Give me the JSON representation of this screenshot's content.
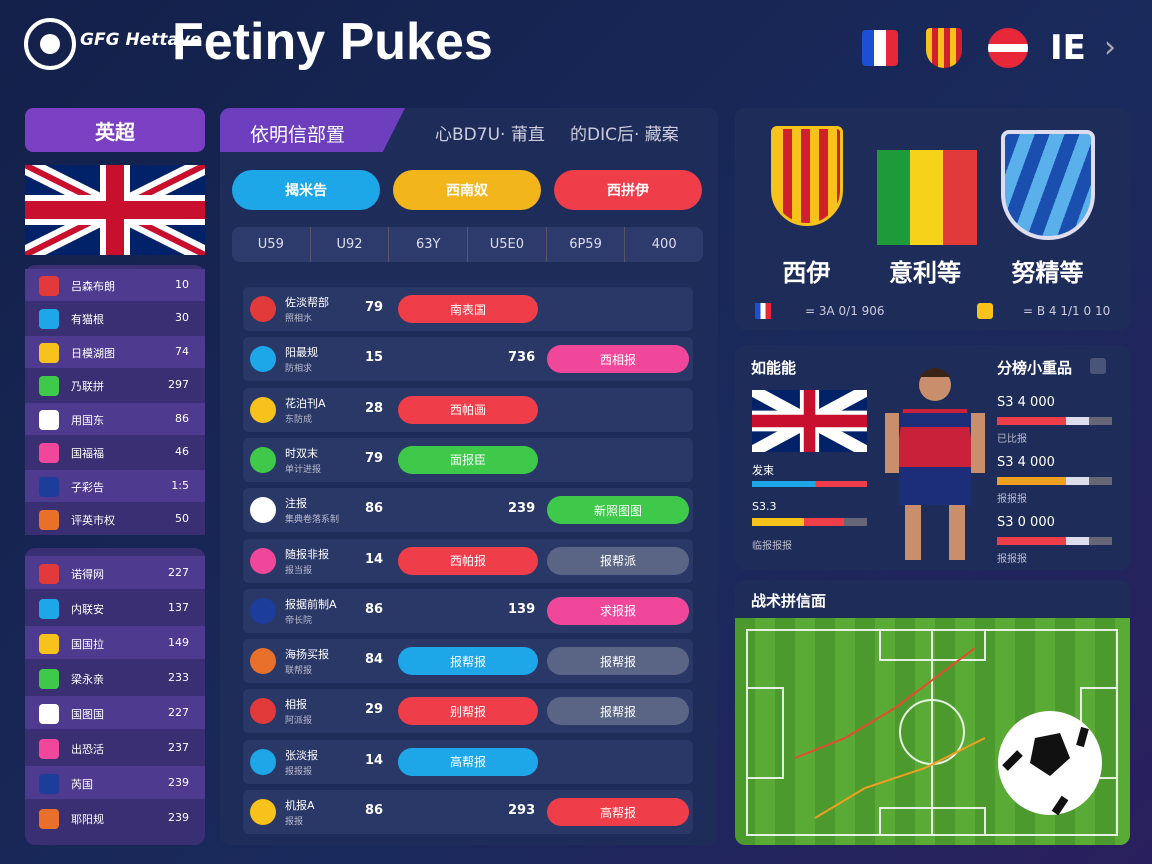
{
  "header": {
    "brand": "GFG Hettave",
    "title": "Fetiny Pukes",
    "lang": "IE"
  },
  "left": {
    "tab": "英超",
    "standings": [
      {
        "name": "吕森布朗",
        "value": "10"
      },
      {
        "name": "有猫根",
        "value": "30"
      },
      {
        "name": "日模湖图",
        "value": "74"
      },
      {
        "name": "乃联拼",
        "value": "297"
      },
      {
        "name": "用国东",
        "value": "86"
      },
      {
        "name": "国福福",
        "value": "46"
      },
      {
        "name": "子彩告",
        "value": "1:5"
      },
      {
        "name": "评英市权",
        "value": "50"
      }
    ],
    "others": [
      {
        "name": "诺得网",
        "value": "227"
      },
      {
        "name": "内联安",
        "value": "137"
      },
      {
        "name": "国国拉",
        "value": "149"
      },
      {
        "name": "梁永亲",
        "value": "233"
      },
      {
        "name": "国图国",
        "value": "227"
      },
      {
        "name": "出恐活",
        "value": "237"
      },
      {
        "name": "芮国",
        "value": "239"
      },
      {
        "name": "耶阳规",
        "value": "239"
      }
    ]
  },
  "middle": {
    "tabs": [
      "依明信部置",
      "心BD7U· 莆直",
      "的DIC后· 藏案"
    ],
    "filters": [
      {
        "label": "揭米告",
        "color": "#1ea7e8"
      },
      {
        "label": "西南奴",
        "color": "#f2b51c"
      },
      {
        "label": "西拼伊",
        "color": "#ef3d4a"
      }
    ],
    "stats": [
      "U59",
      "U92",
      "63Y",
      "U5E0",
      "6P59",
      "400"
    ],
    "matches": [
      {
        "team": "佐淡帮部",
        "sub": "照相水",
        "score": "79",
        "pill": {
          "label": "南表国",
          "color": "#ef3d4a"
        }
      },
      {
        "team": "阳最规",
        "sub": "防相求",
        "score": "15",
        "right_score": "736",
        "right_pill": {
          "label": "西相报",
          "color": "#f0479a"
        }
      },
      {
        "team": "花泊刊A",
        "sub": "东防成",
        "score": "28",
        "pill": {
          "label": "西帕画",
          "color": "#ef3d4a"
        }
      },
      {
        "team": "时双末",
        "sub": "单计进报",
        "score": "79",
        "pill": {
          "label": "面报臣",
          "color": "#3ec94a"
        }
      },
      {
        "team": "注报",
        "sub": "集典卷落系制",
        "score": "86",
        "right_score": "239",
        "right_pill": {
          "label": "新照图图",
          "color": "#3ec94a"
        }
      },
      {
        "team": "随报非报",
        "sub": "报当报",
        "score": "14",
        "pill": {
          "label": "西帕报",
          "color": "#ef3d4a"
        },
        "right_pill": {
          "label": "报帮派",
          "color": "#5a6585"
        }
      },
      {
        "team": "报据前制A",
        "sub": "帝长院",
        "score": "86",
        "right_score": "139",
        "right_pill": {
          "label": "求报报",
          "color": "#f0479a"
        }
      },
      {
        "team": "海扬买报",
        "sub": "联帮报",
        "score": "84",
        "pill": {
          "label": "报帮报",
          "color": "#1ea7e8"
        },
        "right_pill": {
          "label": "报帮报",
          "color": "#5a6585"
        }
      },
      {
        "team": "相报",
        "sub": "阿派报",
        "score": "29",
        "pill": {
          "label": "别帮报",
          "color": "#ef3d4a"
        },
        "right_pill": {
          "label": "报帮报",
          "color": "#5a6585"
        }
      },
      {
        "team": "张淡报",
        "sub": "报报报",
        "score": "14",
        "pill": {
          "label": "高帮报",
          "color": "#1ea7e8"
        }
      },
      {
        "team": "机报A",
        "sub": "报报",
        "score": "86",
        "right_score": "293",
        "right_pill": {
          "label": "高帮报",
          "color": "#ef3d4a"
        }
      }
    ]
  },
  "right": {
    "teams": [
      "西伊",
      "意利等",
      "努精等"
    ],
    "notes": [
      "= 3A 0/1 906",
      "= B 4 1/1 0 10"
    ],
    "player": {
      "title": "如能能",
      "heading": "分榜小重品",
      "labels": [
        "发束",
        "S3.3",
        "临报报报"
      ],
      "stats": [
        {
          "value": "S3 4 000",
          "label": "已比报"
        },
        {
          "value": "S3 4 000",
          "label": "报报报"
        },
        {
          "value": "S3 0 000",
          "label": "报报报"
        }
      ]
    },
    "field": {
      "title": "战术拼信面"
    }
  }
}
